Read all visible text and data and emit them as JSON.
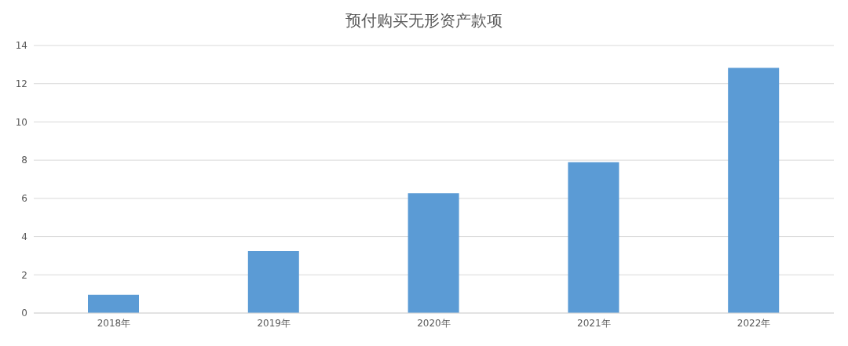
{
  "chart_data": {
    "type": "bar",
    "title": "预付购买无形资产款项",
    "categories": [
      "2018年",
      "2019年",
      "2020年",
      "2021年",
      "2022年"
    ],
    "values": [
      0.95,
      3.24,
      6.27,
      7.89,
      12.83
    ],
    "color": "#5b9bd5",
    "ylim": [
      0,
      14
    ],
    "yticks": [
      0,
      2,
      4,
      6,
      8,
      10,
      12,
      14
    ],
    "grid": "y"
  }
}
